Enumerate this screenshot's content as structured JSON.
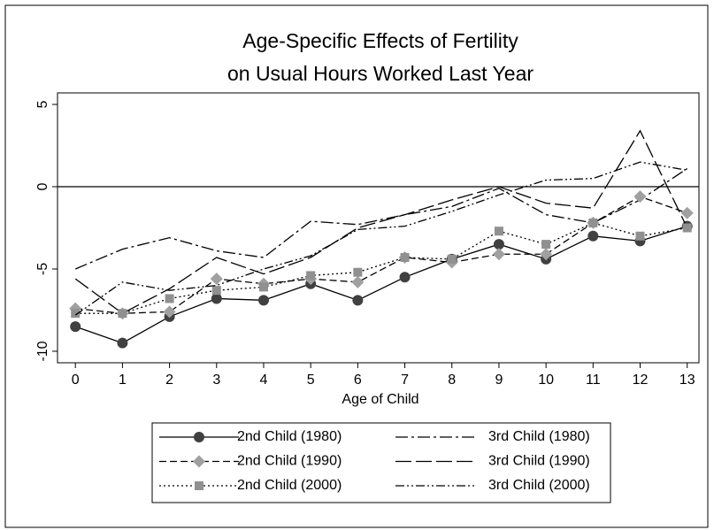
{
  "chart_data": {
    "type": "line",
    "title": [
      "Age-Specific Effects of Fertility",
      "on Usual Hours Worked Last Year"
    ],
    "x_label": "Age of Child",
    "x": [
      0,
      1,
      2,
      3,
      4,
      5,
      6,
      7,
      8,
      9,
      10,
      11,
      12,
      13
    ],
    "xlim": [
      -0.38,
      13.25
    ],
    "xticks": [
      0,
      1,
      2,
      3,
      4,
      5,
      6,
      7,
      8,
      9,
      10,
      11,
      12,
      13
    ],
    "ylim": [
      -10.7,
      5.7
    ],
    "yticks": [
      -10,
      -5,
      0,
      5
    ],
    "yline": 0,
    "legend": "bottom",
    "series": [
      {
        "name": "2nd Child (1980)",
        "color": "#000000",
        "marker": "circle",
        "marker_color": "#404040",
        "dash": "none",
        "values": [
          -8.5,
          -9.5,
          -7.9,
          -6.8,
          -6.9,
          -5.9,
          -6.9,
          -5.5,
          -4.4,
          -3.5,
          -4.4,
          -3.0,
          -3.3,
          -2.4
        ]
      },
      {
        "name": "3rd Child (1980)",
        "color": "#000000",
        "marker": "none",
        "dash": "14 4 3 4",
        "values": [
          -5.0,
          -3.8,
          -3.1,
          -3.9,
          -4.3,
          -2.1,
          -2.3,
          -1.7,
          -1.2,
          -0.1,
          -1.7,
          -2.2,
          -0.8,
          1.1
        ]
      },
      {
        "name": "2nd Child (1990)",
        "color": "#000000",
        "marker": "diamond",
        "marker_color": "#a0a0a0",
        "dash": "8 4",
        "values": [
          -7.4,
          -7.7,
          -7.6,
          -5.6,
          -5.9,
          -5.6,
          -5.8,
          -4.3,
          -4.6,
          -4.1,
          -4.1,
          -2.2,
          -0.6,
          -1.6
        ]
      },
      {
        "name": "3rd Child (1990)",
        "color": "#000000",
        "marker": "none",
        "dash": "18 5",
        "values": [
          -5.6,
          -7.7,
          -6.2,
          -4.3,
          -5.3,
          -4.3,
          -2.5,
          -1.7,
          -0.8,
          0.0,
          -1.0,
          -1.3,
          3.4,
          -2.5
        ]
      },
      {
        "name": "2nd Child (2000)",
        "color": "#000000",
        "marker": "square",
        "marker_color": "#909090",
        "dash": "2 3",
        "values": [
          -7.7,
          -7.7,
          -6.8,
          -6.3,
          -6.1,
          -5.4,
          -5.2,
          -4.3,
          -4.4,
          -2.7,
          -3.5,
          -2.2,
          -3.0,
          -2.5
        ]
      },
      {
        "name": "3rd Child (2000)",
        "color": "#000000",
        "marker": "none",
        "dash": "10 3 2 3 2 3",
        "values": [
          -7.8,
          -5.8,
          -6.3,
          -6.0,
          -5.0,
          -4.2,
          -2.6,
          -2.4,
          -1.5,
          -0.5,
          0.4,
          0.5,
          1.5,
          1.0
        ]
      }
    ]
  }
}
